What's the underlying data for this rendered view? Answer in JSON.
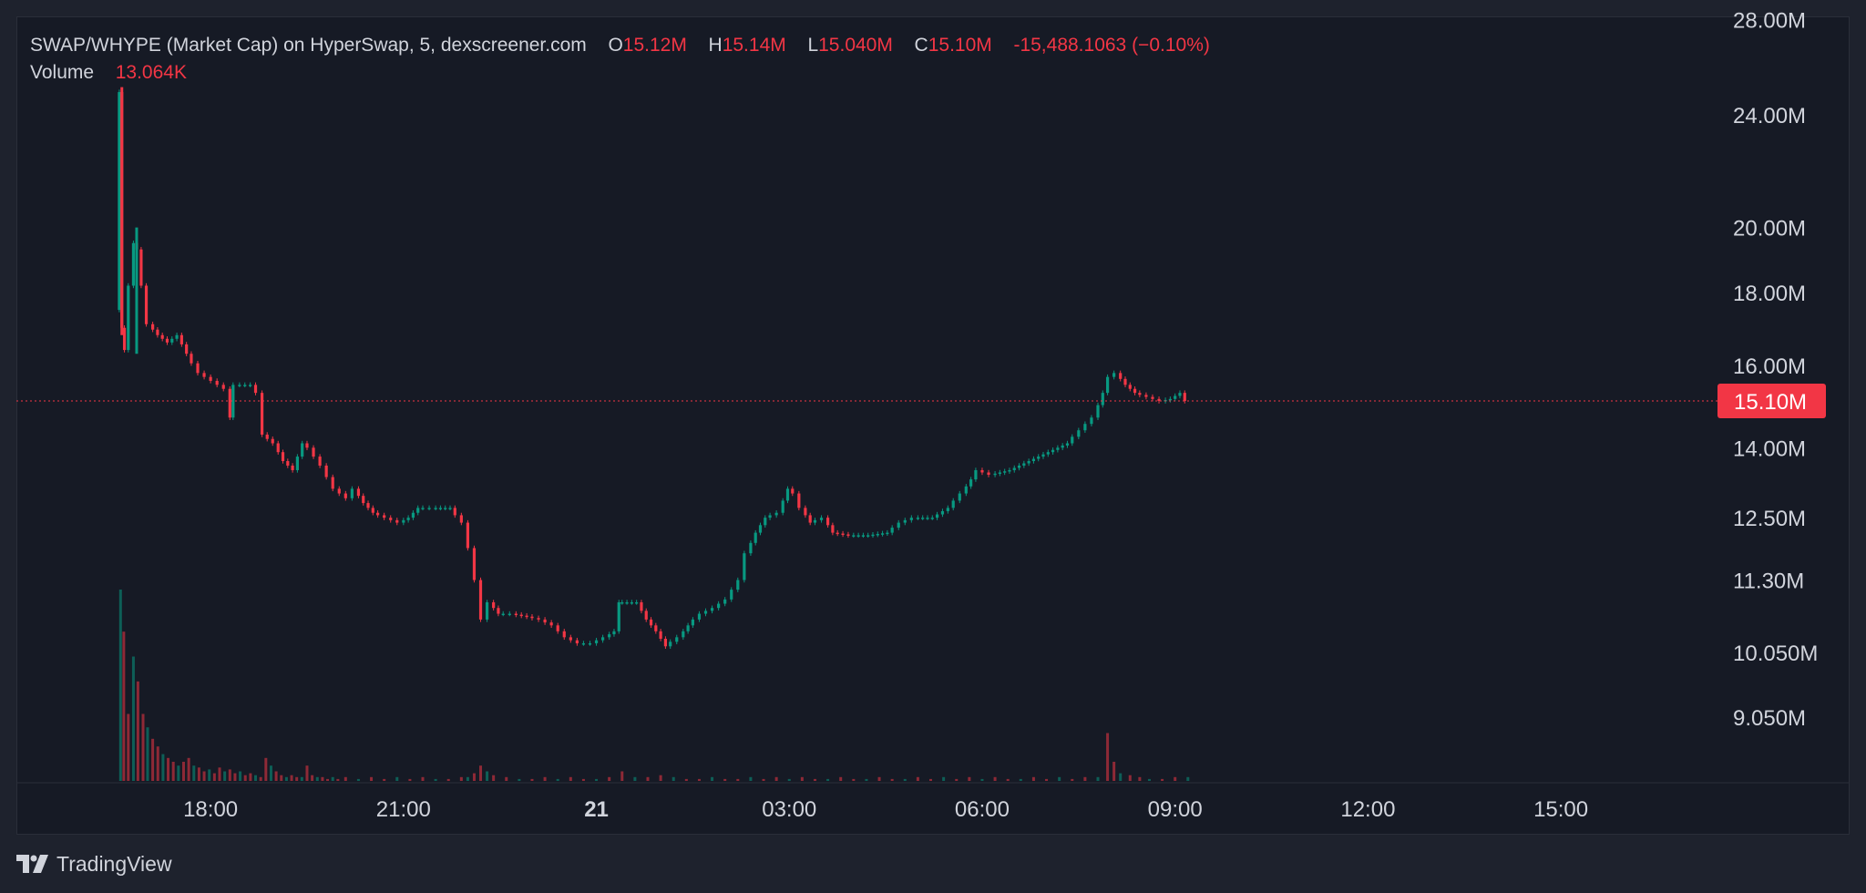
{
  "legend": {
    "title": "SWAP/WHYPE (Market Cap) on HyperSwap, 5, dexscreener.com",
    "open_label": "O",
    "open": "15.12M",
    "high_label": "H",
    "high": "15.14M",
    "low_label": "L",
    "low": "15.040M",
    "close_label": "C",
    "close": "15.10M",
    "change": "-15,488.1063 (−0.10%)",
    "volume_label": "Volume",
    "volume": "13.064K"
  },
  "brand": {
    "name": "TradingView",
    "icon": "tradingview-logo-icon"
  },
  "colors": {
    "up": "#089981",
    "down": "#f23645",
    "background": "#161a25",
    "text": "#d1d4dc"
  },
  "chart_data": {
    "type": "candlestick",
    "title": "SWAP/WHYPE (Market Cap) on HyperSwap, 5, dexscreener.com",
    "interval": "5",
    "price_scale": "log",
    "ylim": [
      8500000,
      28500000
    ],
    "x_axis_labels": [
      "18:00",
      "21:00",
      "21",
      "03:00",
      "06:00",
      "09:00",
      "12:00",
      "15:00"
    ],
    "x_ticks": [
      {
        "label": "18:00",
        "t": 18.0
      },
      {
        "label": "21:00",
        "t": 21.0
      },
      {
        "label": "21",
        "t": 24.0,
        "bold": true
      },
      {
        "label": "03:00",
        "t": 27.0
      },
      {
        "label": "06:00",
        "t": 30.0
      },
      {
        "label": "09:00",
        "t": 33.0
      },
      {
        "label": "12:00",
        "t": 36.0
      },
      {
        "label": "15:00",
        "t": 39.0
      }
    ],
    "xlim": [
      14.98,
      41.45
    ],
    "y_tick_labels": [
      "28.00M",
      "24.00M",
      "20.00M",
      "18.00M",
      "16.00M",
      "14.00M",
      "12.50M",
      "11.30M",
      "10.050M",
      "9.050M"
    ],
    "y_ticks": [
      28000000,
      24000000,
      20000000,
      18000000,
      16000000,
      14000000,
      12500000,
      11300000,
      10050000,
      9050000
    ],
    "last_price": 15100000,
    "last_price_label": "15.10M",
    "price_path": [
      [
        16.58,
        17500000
      ],
      [
        16.62,
        24900000
      ],
      [
        16.66,
        17000000
      ],
      [
        16.72,
        16400000
      ],
      [
        16.8,
        18200000
      ],
      [
        16.85,
        19500000
      ],
      [
        16.92,
        19300000
      ],
      [
        17.0,
        18200000
      ],
      [
        17.1,
        17100000
      ],
      [
        17.25,
        16800000
      ],
      [
        17.4,
        16600000
      ],
      [
        17.55,
        16800000
      ],
      [
        17.7,
        16300000
      ],
      [
        17.9,
        15800000
      ],
      [
        18.1,
        15600000
      ],
      [
        18.3,
        15400000
      ],
      [
        18.35,
        14700000
      ],
      [
        18.45,
        15500000
      ],
      [
        18.7,
        15500000
      ],
      [
        18.8,
        15300000
      ],
      [
        18.88,
        14300000
      ],
      [
        19.05,
        14100000
      ],
      [
        19.2,
        13700000
      ],
      [
        19.35,
        13500000
      ],
      [
        19.5,
        14100000
      ],
      [
        19.6,
        14000000
      ],
      [
        19.8,
        13600000
      ],
      [
        20.0,
        13100000
      ],
      [
        20.2,
        12900000
      ],
      [
        20.3,
        13100000
      ],
      [
        20.45,
        12800000
      ],
      [
        20.6,
        12600000
      ],
      [
        20.8,
        12500000
      ],
      [
        21.0,
        12400000
      ],
      [
        21.15,
        12500000
      ],
      [
        21.3,
        12700000
      ],
      [
        21.5,
        12700000
      ],
      [
        21.8,
        12700000
      ],
      [
        22.0,
        12400000
      ],
      [
        22.1,
        11900000
      ],
      [
        22.2,
        11300000
      ],
      [
        22.3,
        10600000
      ],
      [
        22.4,
        10900000
      ],
      [
        22.55,
        10700000
      ],
      [
        22.75,
        10700000
      ],
      [
        23.0,
        10650000
      ],
      [
        23.2,
        10600000
      ],
      [
        23.4,
        10500000
      ],
      [
        23.6,
        10300000
      ],
      [
        23.8,
        10200000
      ],
      [
        24.0,
        10200000
      ],
      [
        24.2,
        10300000
      ],
      [
        24.35,
        10400000
      ],
      [
        24.4,
        10900000
      ],
      [
        24.55,
        10900000
      ],
      [
        24.7,
        10900000
      ],
      [
        24.85,
        10600000
      ],
      [
        25.0,
        10400000
      ],
      [
        25.15,
        10150000
      ],
      [
        25.35,
        10300000
      ],
      [
        25.5,
        10500000
      ],
      [
        25.7,
        10700000
      ],
      [
        25.9,
        10800000
      ],
      [
        26.1,
        10950000
      ],
      [
        26.3,
        11300000
      ],
      [
        26.4,
        11800000
      ],
      [
        26.55,
        12200000
      ],
      [
        26.7,
        12500000
      ],
      [
        26.9,
        12600000
      ],
      [
        27.05,
        13100000
      ],
      [
        27.15,
        13000000
      ],
      [
        27.25,
        12700000
      ],
      [
        27.4,
        12400000
      ],
      [
        27.6,
        12500000
      ],
      [
        27.75,
        12200000
      ],
      [
        28.0,
        12150000
      ],
      [
        28.3,
        12150000
      ],
      [
        28.6,
        12200000
      ],
      [
        28.8,
        12400000
      ],
      [
        29.0,
        12500000
      ],
      [
        29.3,
        12500000
      ],
      [
        29.55,
        12700000
      ],
      [
        29.75,
        13000000
      ],
      [
        29.9,
        13300000
      ],
      [
        30.0,
        13500000
      ],
      [
        30.2,
        13400000
      ],
      [
        30.5,
        13500000
      ],
      [
        30.8,
        13700000
      ],
      [
        31.1,
        13900000
      ],
      [
        31.4,
        14100000
      ],
      [
        31.6,
        14400000
      ],
      [
        31.8,
        14700000
      ],
      [
        31.95,
        15300000
      ],
      [
        32.05,
        15700000
      ],
      [
        32.15,
        15800000
      ],
      [
        32.3,
        15500000
      ],
      [
        32.45,
        15300000
      ],
      [
        32.65,
        15200000
      ],
      [
        32.85,
        15100000
      ],
      [
        33.0,
        15150000
      ],
      [
        33.15,
        15300000
      ],
      [
        33.25,
        15100000
      ]
    ],
    "volume_bars": [
      [
        16.6,
        1.0
      ],
      [
        16.65,
        0.78
      ],
      [
        16.72,
        0.35
      ],
      [
        16.8,
        0.65
      ],
      [
        16.87,
        0.52
      ],
      [
        16.95,
        0.35
      ],
      [
        17.02,
        0.28
      ],
      [
        17.1,
        0.22
      ],
      [
        17.18,
        0.18
      ],
      [
        17.26,
        0.14
      ],
      [
        17.34,
        0.12
      ],
      [
        17.42,
        0.1
      ],
      [
        17.5,
        0.08
      ],
      [
        17.58,
        0.1
      ],
      [
        17.66,
        0.12
      ],
      [
        17.74,
        0.08
      ],
      [
        17.82,
        0.07
      ],
      [
        17.9,
        0.05
      ],
      [
        17.98,
        0.06
      ],
      [
        18.06,
        0.04
      ],
      [
        18.14,
        0.07
      ],
      [
        18.22,
        0.05
      ],
      [
        18.3,
        0.06
      ],
      [
        18.38,
        0.04
      ],
      [
        18.46,
        0.05
      ],
      [
        18.54,
        0.03
      ],
      [
        18.62,
        0.04
      ],
      [
        18.7,
        0.03
      ],
      [
        18.78,
        0.02
      ],
      [
        18.86,
        0.12
      ],
      [
        18.94,
        0.08
      ],
      [
        19.02,
        0.05
      ],
      [
        19.1,
        0.03
      ],
      [
        19.18,
        0.02
      ],
      [
        19.26,
        0.03
      ],
      [
        19.34,
        0.02
      ],
      [
        19.42,
        0.02
      ],
      [
        19.5,
        0.08
      ],
      [
        19.58,
        0.03
      ],
      [
        19.66,
        0.02
      ],
      [
        19.74,
        0.02
      ],
      [
        19.82,
        0.01
      ],
      [
        19.9,
        0.02
      ],
      [
        19.98,
        0.01
      ],
      [
        20.1,
        0.02
      ],
      [
        20.3,
        0.01
      ],
      [
        20.5,
        0.02
      ],
      [
        20.7,
        0.01
      ],
      [
        20.9,
        0.02
      ],
      [
        21.1,
        0.01
      ],
      [
        21.3,
        0.02
      ],
      [
        21.5,
        0.01
      ],
      [
        21.7,
        0.01
      ],
      [
        21.9,
        0.02
      ],
      [
        22.0,
        0.02
      ],
      [
        22.1,
        0.04
      ],
      [
        22.2,
        0.08
      ],
      [
        22.3,
        0.05
      ],
      [
        22.4,
        0.03
      ],
      [
        22.6,
        0.02
      ],
      [
        22.8,
        0.01
      ],
      [
        23.0,
        0.01
      ],
      [
        23.2,
        0.02
      ],
      [
        23.4,
        0.01
      ],
      [
        23.6,
        0.02
      ],
      [
        23.8,
        0.01
      ],
      [
        24.0,
        0.01
      ],
      [
        24.2,
        0.02
      ],
      [
        24.4,
        0.05
      ],
      [
        24.6,
        0.02
      ],
      [
        24.8,
        0.02
      ],
      [
        25.0,
        0.03
      ],
      [
        25.2,
        0.02
      ],
      [
        25.4,
        0.01
      ],
      [
        25.6,
        0.01
      ],
      [
        25.8,
        0.02
      ],
      [
        26.0,
        0.01
      ],
      [
        26.2,
        0.01
      ],
      [
        26.4,
        0.02
      ],
      [
        26.6,
        0.01
      ],
      [
        26.8,
        0.02
      ],
      [
        27.0,
        0.01
      ],
      [
        27.2,
        0.02
      ],
      [
        27.4,
        0.01
      ],
      [
        27.6,
        0.01
      ],
      [
        27.8,
        0.02
      ],
      [
        28.0,
        0.01
      ],
      [
        28.2,
        0.01
      ],
      [
        28.4,
        0.02
      ],
      [
        28.6,
        0.01
      ],
      [
        28.8,
        0.01
      ],
      [
        29.0,
        0.02
      ],
      [
        29.2,
        0.01
      ],
      [
        29.4,
        0.02
      ],
      [
        29.6,
        0.01
      ],
      [
        29.8,
        0.02
      ],
      [
        30.0,
        0.01
      ],
      [
        30.2,
        0.02
      ],
      [
        30.4,
        0.01
      ],
      [
        30.6,
        0.01
      ],
      [
        30.8,
        0.02
      ],
      [
        31.0,
        0.01
      ],
      [
        31.2,
        0.02
      ],
      [
        31.4,
        0.01
      ],
      [
        31.6,
        0.02
      ],
      [
        31.8,
        0.02
      ],
      [
        31.95,
        0.25
      ],
      [
        32.05,
        0.1
      ],
      [
        32.15,
        0.04
      ],
      [
        32.3,
        0.03
      ],
      [
        32.45,
        0.02
      ],
      [
        32.6,
        0.01
      ],
      [
        32.8,
        0.01
      ],
      [
        33.0,
        0.02
      ],
      [
        33.2,
        0.02
      ]
    ]
  }
}
